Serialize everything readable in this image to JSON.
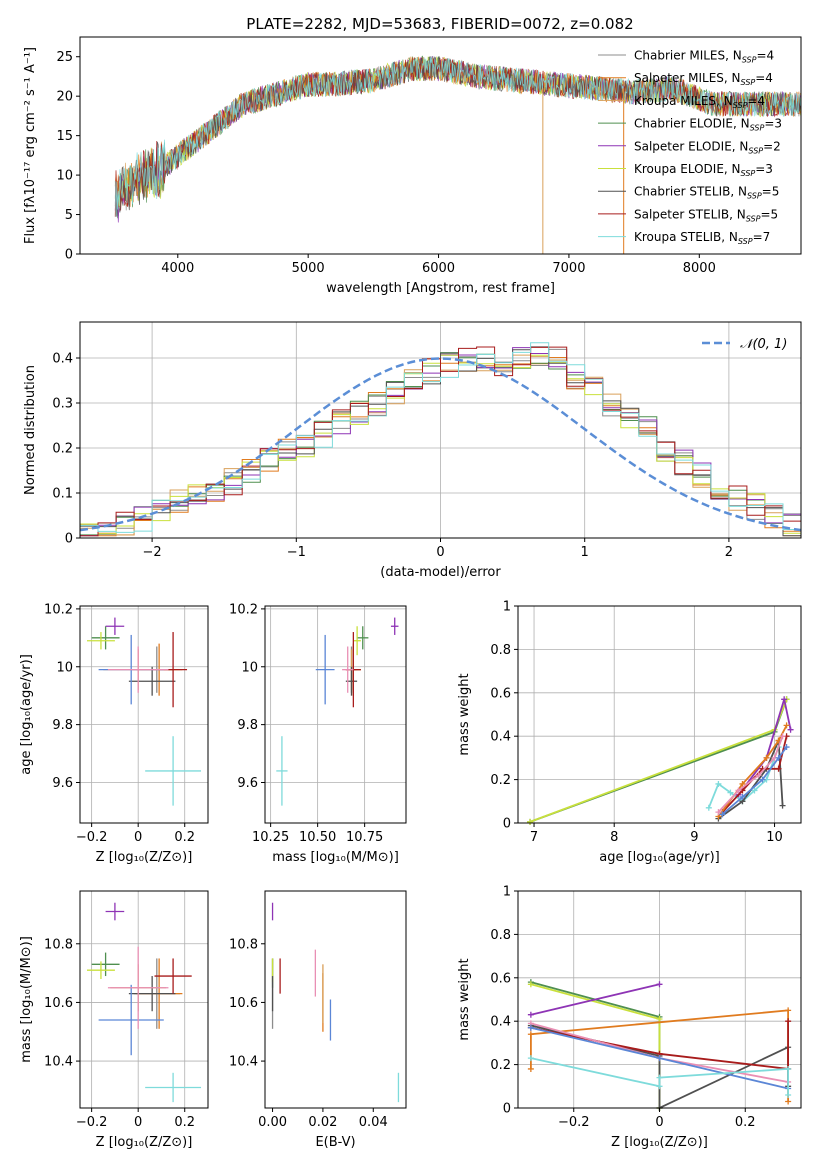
{
  "figure": {
    "title": "PLATE=2282, MJD=53683, FIBERID=0072, z=0.082"
  },
  "series": [
    {
      "key": "cm",
      "name": "Chabrier MILES, N",
      "sub": "SSP",
      "suffix": "=4",
      "color": "#8c8c8c"
    },
    {
      "key": "sm",
      "name": "Salpeter MILES, N",
      "sub": "SSP",
      "suffix": "=4",
      "color": "#e07b1f"
    },
    {
      "key": "km",
      "name": "Kroupa MILES, N",
      "sub": "SSP",
      "suffix": "=4",
      "color": "#d9a05a"
    },
    {
      "key": "ce",
      "name": "Chabrier ELODIE, N",
      "sub": "SSP",
      "suffix": "=3",
      "color": "#4f8f4f"
    },
    {
      "key": "se",
      "name": "Salpeter ELODIE, N",
      "sub": "SSP",
      "suffix": "=2",
      "color": "#8e34b5"
    },
    {
      "key": "ke",
      "name": "Kroupa ELODIE, N",
      "sub": "SSP",
      "suffix": "=3",
      "color": "#c9e03c"
    },
    {
      "key": "cs",
      "name": "Chabrier STELIB, N",
      "sub": "SSP",
      "suffix": "=5",
      "color": "#505050"
    },
    {
      "key": "ss",
      "name": "Salpeter STELIB, N",
      "sub": "SSP",
      "suffix": "=5",
      "color": "#a81c1c"
    },
    {
      "key": "ks",
      "name": "Kroupa STELIB, N",
      "sub": "SSP",
      "suffix": "=7",
      "color": "#7edbdb"
    }
  ],
  "extra_colors": {
    "blue": "#5b86d6",
    "pink": "#e98fb4",
    "normal_line": "#5b8ed6"
  },
  "chart_data": [
    {
      "id": "spectrum",
      "type": "line",
      "xlabel": "wavelength [Angstrom, rest frame]",
      "ylabel": "Flux [fλ10⁻¹⁷ erg cm⁻² s⁻¹ A⁻¹]",
      "xlim": [
        3250,
        8780
      ],
      "ylim": [
        0,
        27.5
      ],
      "xticks": [
        4000,
        5000,
        6000,
        7000,
        8000
      ],
      "yticks": [
        0,
        5,
        10,
        15,
        20,
        25
      ],
      "grid": false,
      "legend": "right",
      "continuum": {
        "x": [
          3520,
          3700,
          3900,
          4000,
          4200,
          4500,
          4800,
          5000,
          5200,
          5500,
          5800,
          6000,
          6300,
          6600,
          6900,
          7200,
          7500,
          7800,
          8100,
          8400,
          8780
        ],
        "y": [
          7.5,
          9.5,
          11,
          12.5,
          15,
          19,
          20.5,
          21.5,
          21.5,
          22,
          23.5,
          23.5,
          22.5,
          22,
          21.5,
          21,
          20.5,
          21,
          19,
          19,
          19
        ]
      }
    },
    {
      "id": "residuals",
      "type": "step",
      "xlabel": "(data-model)/error",
      "ylabel": "Normed distribution",
      "xlim": [
        -2.5,
        2.5
      ],
      "ylim": [
        0,
        0.48
      ],
      "xticks": [
        -2,
        -1,
        0,
        1,
        2
      ],
      "yticks": [
        0.0,
        0.1,
        0.2,
        0.3,
        0.4
      ],
      "grid": true,
      "legend": "top-right",
      "legend_label": "𝒩(0, 1)",
      "bins": {
        "start": -2.5,
        "width": 0.125,
        "count": 40
      },
      "mean_hist": [
        0.03,
        0.03,
        0.035,
        0.045,
        0.055,
        0.08,
        0.095,
        0.11,
        0.125,
        0.145,
        0.17,
        0.19,
        0.21,
        0.23,
        0.255,
        0.275,
        0.3,
        0.32,
        0.35,
        0.37,
        0.385,
        0.4,
        0.395,
        0.39,
        0.4,
        0.41,
        0.395,
        0.36,
        0.33,
        0.3,
        0.27,
        0.24,
        0.2,
        0.17,
        0.14,
        0.11,
        0.09,
        0.07,
        0.05,
        0.03
      ]
    },
    {
      "id": "age_vs_Z",
      "type": "scatter",
      "xlabel": "Z [log₁₀(Z/Z⊙)]",
      "ylabel": "age  [log₁₀(age/yr)]",
      "xlim": [
        -0.25,
        0.3
      ],
      "ylim": [
        9.46,
        10.21
      ],
      "xticks": [
        -0.2,
        0.0,
        0.2
      ],
      "yticks": [
        9.6,
        9.8,
        10.0,
        10.2
      ],
      "grid": true,
      "points": [
        {
          "s": "cm",
          "x": 0.08,
          "y": 9.99,
          "ex": 0.07,
          "ey": 0.08
        },
        {
          "s": "sm",
          "x": 0.09,
          "y": 9.99,
          "ex": 0.1,
          "ey": 0.09
        },
        {
          "s": "km",
          "x": 0.0,
          "y": 9.99,
          "ex": 0.15,
          "ey": 0.07
        },
        {
          "s": "ce",
          "x": -0.14,
          "y": 10.1,
          "ex": 0.06,
          "ey": 0.04
        },
        {
          "s": "se",
          "x": -0.1,
          "y": 10.14,
          "ex": 0.04,
          "ey": 0.03
        },
        {
          "s": "ke",
          "x": -0.16,
          "y": 10.09,
          "ex": 0.06,
          "ey": 0.03
        },
        {
          "s": "cs",
          "x": 0.06,
          "y": 9.95,
          "ex": 0.1,
          "ey": 0.05
        },
        {
          "s": "ss",
          "x": 0.15,
          "y": 9.99,
          "ex": 0.06,
          "ey": 0.13
        },
        {
          "s": "ks",
          "x": 0.15,
          "y": 9.64,
          "ex": 0.12,
          "ey": 0.12
        },
        {
          "s": "blue",
          "x": -0.03,
          "y": 9.99,
          "ex": 0.14,
          "ey": 0.12
        },
        {
          "s": "pink",
          "x": 0.0,
          "y": 9.99,
          "ex": 0.13,
          "ey": 0.08
        }
      ]
    },
    {
      "id": "age_vs_mass",
      "type": "scatter",
      "xlabel": "mass [log₁₀(M/M⊙)]",
      "ylabel": "",
      "xlim": [
        10.22,
        10.97
      ],
      "ylim": [
        9.46,
        10.21
      ],
      "xticks": [
        10.25,
        10.5,
        10.75
      ],
      "xticklabels": [
        "10.25",
        "10.50",
        "10.75"
      ],
      "yticks": [
        9.6,
        9.8,
        10.0,
        10.2
      ],
      "grid": true,
      "points": [
        {
          "s": "cm",
          "x": 10.68,
          "y": 9.99,
          "ex": 0.03,
          "ey": 0.08
        },
        {
          "s": "sm",
          "x": 10.69,
          "y": 9.99,
          "ex": 0.04,
          "ey": 0.09
        },
        {
          "s": "km",
          "x": 10.68,
          "y": 9.99,
          "ex": 0.03,
          "ey": 0.07
        },
        {
          "s": "ce",
          "x": 10.74,
          "y": 10.1,
          "ex": 0.03,
          "ey": 0.04
        },
        {
          "s": "se",
          "x": 10.91,
          "y": 10.14,
          "ex": 0.02,
          "ey": 0.03
        },
        {
          "s": "ke",
          "x": 10.71,
          "y": 10.09,
          "ex": 0.02,
          "ey": 0.05
        },
        {
          "s": "cs",
          "x": 10.68,
          "y": 9.95,
          "ex": 0.03,
          "ey": 0.05
        },
        {
          "s": "ss",
          "x": 10.69,
          "y": 9.99,
          "ex": 0.04,
          "ey": 0.13
        },
        {
          "s": "ks",
          "x": 10.31,
          "y": 9.64,
          "ex": 0.03,
          "ey": 0.12
        },
        {
          "s": "blue",
          "x": 10.54,
          "y": 9.99,
          "ex": 0.05,
          "ey": 0.12
        },
        {
          "s": "pink",
          "x": 10.66,
          "y": 9.99,
          "ex": 0.03,
          "ey": 0.08
        }
      ]
    },
    {
      "id": "mass_weight_vs_age",
      "type": "line",
      "xlabel": "age  [log₁₀(age/yr)]",
      "ylabel": "mass weight",
      "xlim": [
        6.8,
        10.33
      ],
      "ylim": [
        0,
        1.0
      ],
      "xticks": [
        7,
        8,
        9,
        10
      ],
      "yticks": [
        0.0,
        0.2,
        0.4,
        0.6,
        0.8,
        1.0
      ],
      "grid": true,
      "lines": [
        {
          "s": "ce",
          "x": [
            6.95,
            10.0,
            10.15
          ],
          "y": [
            0.005,
            0.42,
            0.57
          ]
        },
        {
          "s": "ke",
          "x": [
            6.95,
            10.0,
            10.15
          ],
          "y": [
            0.005,
            0.43,
            0.57
          ]
        },
        {
          "s": "se",
          "x": [
            9.55,
            9.9,
            10.12,
            10.2
          ],
          "y": [
            0.13,
            0.3,
            0.57,
            0.43
          ]
        },
        {
          "s": "ks",
          "x": [
            9.18,
            9.3,
            9.45,
            9.6,
            9.75,
            9.9,
            10.05
          ],
          "y": [
            0.07,
            0.18,
            0.14,
            0.1,
            0.15,
            0.2,
            0.35
          ]
        },
        {
          "s": "cs",
          "x": [
            9.3,
            9.6,
            9.9,
            10.05,
            10.1
          ],
          "y": [
            0.02,
            0.1,
            0.25,
            0.38,
            0.08
          ]
        },
        {
          "s": "ss",
          "x": [
            9.35,
            9.6,
            9.85,
            10.05,
            10.15
          ],
          "y": [
            0.05,
            0.15,
            0.25,
            0.25,
            0.4
          ]
        },
        {
          "s": "sm",
          "x": [
            9.3,
            9.6,
            9.9,
            10.05,
            10.15
          ],
          "y": [
            0.03,
            0.18,
            0.3,
            0.38,
            0.45
          ]
        },
        {
          "s": "pink",
          "x": [
            9.3,
            9.55,
            9.8,
            10.0,
            10.1
          ],
          "y": [
            0.05,
            0.15,
            0.22,
            0.3,
            0.4
          ]
        },
        {
          "s": "blue",
          "x": [
            9.35,
            9.6,
            9.85,
            10.05,
            10.15
          ],
          "y": [
            0.04,
            0.12,
            0.2,
            0.3,
            0.35
          ]
        }
      ]
    },
    {
      "id": "mass_vs_Z",
      "type": "scatter",
      "xlabel": "Z [log₁₀(Z/Z⊙)]",
      "ylabel": "mass [log₁₀(M/M⊙)]",
      "xlim": [
        -0.25,
        0.3
      ],
      "ylim": [
        10.24,
        10.98
      ],
      "xticks": [
        -0.2,
        0.0,
        0.2
      ],
      "yticks": [
        10.4,
        10.6,
        10.8
      ],
      "grid": true,
      "points": [
        {
          "s": "cm",
          "x": 0.08,
          "y": 10.63,
          "ex": 0.1,
          "ey": 0.12
        },
        {
          "s": "sm",
          "x": 0.09,
          "y": 10.63,
          "ex": 0.1,
          "ey": 0.12
        },
        {
          "s": "km",
          "x": 0.0,
          "y": 10.65,
          "ex": 0.12,
          "ey": 0.08
        },
        {
          "s": "ce",
          "x": -0.14,
          "y": 10.73,
          "ex": 0.06,
          "ey": 0.04
        },
        {
          "s": "se",
          "x": -0.1,
          "y": 10.91,
          "ex": 0.04,
          "ey": 0.03
        },
        {
          "s": "ke",
          "x": -0.16,
          "y": 10.71,
          "ex": 0.06,
          "ey": 0.03
        },
        {
          "s": "cs",
          "x": 0.06,
          "y": 10.63,
          "ex": 0.1,
          "ey": 0.06
        },
        {
          "s": "ss",
          "x": 0.15,
          "y": 10.69,
          "ex": 0.08,
          "ey": 0.06
        },
        {
          "s": "ks",
          "x": 0.15,
          "y": 10.31,
          "ex": 0.12,
          "ey": 0.05
        },
        {
          "s": "blue",
          "x": -0.03,
          "y": 10.54,
          "ex": 0.14,
          "ey": 0.12
        },
        {
          "s": "pink",
          "x": 0.0,
          "y": 10.65,
          "ex": 0.13,
          "ey": 0.14
        }
      ]
    },
    {
      "id": "mass_vs_EBV",
      "type": "scatter",
      "xlabel": "E(B-V)",
      "ylabel": "",
      "xlim": [
        -0.003,
        0.053
      ],
      "ylim": [
        10.24,
        10.98
      ],
      "xticks": [
        0.0,
        0.02,
        0.04
      ],
      "xticklabels": [
        "0.00",
        "0.02",
        "0.04"
      ],
      "yticks": [
        10.4,
        10.6,
        10.8
      ],
      "grid": false,
      "points": [
        {
          "s": "cm",
          "x": 0.0,
          "y": 10.63,
          "ex": 0,
          "ey": 0.12
        },
        {
          "s": "sm",
          "x": 0.02,
          "y": 10.6,
          "ex": 0,
          "ey": 0.1
        },
        {
          "s": "km",
          "x": 0.02,
          "y": 10.63,
          "ex": 0,
          "ey": 0.1
        },
        {
          "s": "ce",
          "x": 0.0,
          "y": 10.7,
          "ex": 0,
          "ey": 0.05
        },
        {
          "s": "se",
          "x": 0.0,
          "y": 10.91,
          "ex": 0,
          "ey": 0.03
        },
        {
          "s": "ke",
          "x": 0.0,
          "y": 10.71,
          "ex": 0,
          "ey": 0.04
        },
        {
          "s": "cs",
          "x": 0.0,
          "y": 10.63,
          "ex": 0,
          "ey": 0.06
        },
        {
          "s": "ss",
          "x": 0.003,
          "y": 10.69,
          "ex": 0,
          "ey": 0.06
        },
        {
          "s": "ks",
          "x": 0.05,
          "y": 10.31,
          "ex": 0,
          "ey": 0.05
        },
        {
          "s": "blue",
          "x": 0.023,
          "y": 10.54,
          "ex": 0,
          "ey": 0.07
        },
        {
          "s": "pink",
          "x": 0.017,
          "y": 10.7,
          "ex": 0,
          "ey": 0.08
        }
      ]
    },
    {
      "id": "mass_weight_vs_Z",
      "type": "line",
      "xlabel": "Z [log₁₀(Z/Z⊙)]",
      "ylabel": "mass weight",
      "xlim": [
        -0.33,
        0.33
      ],
      "ylim": [
        0,
        1.0
      ],
      "xticks": [
        -0.2,
        0.0,
        0.2
      ],
      "yticks": [
        0.0,
        0.2,
        0.4,
        0.6,
        0.8,
        1.0
      ],
      "grid": true,
      "lines": [
        {
          "s": "ce",
          "x": [
            -0.3,
            0.0,
            0.0
          ],
          "y": [
            0.58,
            0.42,
            0.0
          ]
        },
        {
          "s": "ke",
          "x": [
            -0.3,
            0.0,
            0.0
          ],
          "y": [
            0.57,
            0.41,
            0.0
          ]
        },
        {
          "s": "se",
          "x": [
            -0.3,
            0.0
          ],
          "y": [
            0.43,
            0.57
          ]
        },
        {
          "s": "sm",
          "x": [
            -0.3,
            -0.3,
            0.3,
            0.3
          ],
          "y": [
            0.18,
            0.34,
            0.45,
            0.03
          ]
        },
        {
          "s": "cs",
          "x": [
            -0.3,
            0.0,
            0.0,
            0.3,
            0.3
          ],
          "y": [
            0.38,
            0.24,
            0.0,
            0.28,
            0.1
          ]
        },
        {
          "s": "ss",
          "x": [
            -0.3,
            0.0,
            0.3,
            0.3
          ],
          "y": [
            0.37,
            0.25,
            0.18,
            0.4
          ]
        },
        {
          "s": "pink",
          "x": [
            -0.3,
            0.0,
            0.3
          ],
          "y": [
            0.39,
            0.23,
            0.12
          ]
        },
        {
          "s": "blue",
          "x": [
            -0.3,
            0.0,
            0.3
          ],
          "y": [
            0.37,
            0.23,
            0.09
          ]
        },
        {
          "s": "ks",
          "x": [
            -0.3,
            0.0,
            0.0,
            0.3,
            0.3
          ],
          "y": [
            0.23,
            0.1,
            0.14,
            0.18,
            0.06
          ]
        }
      ]
    }
  ]
}
